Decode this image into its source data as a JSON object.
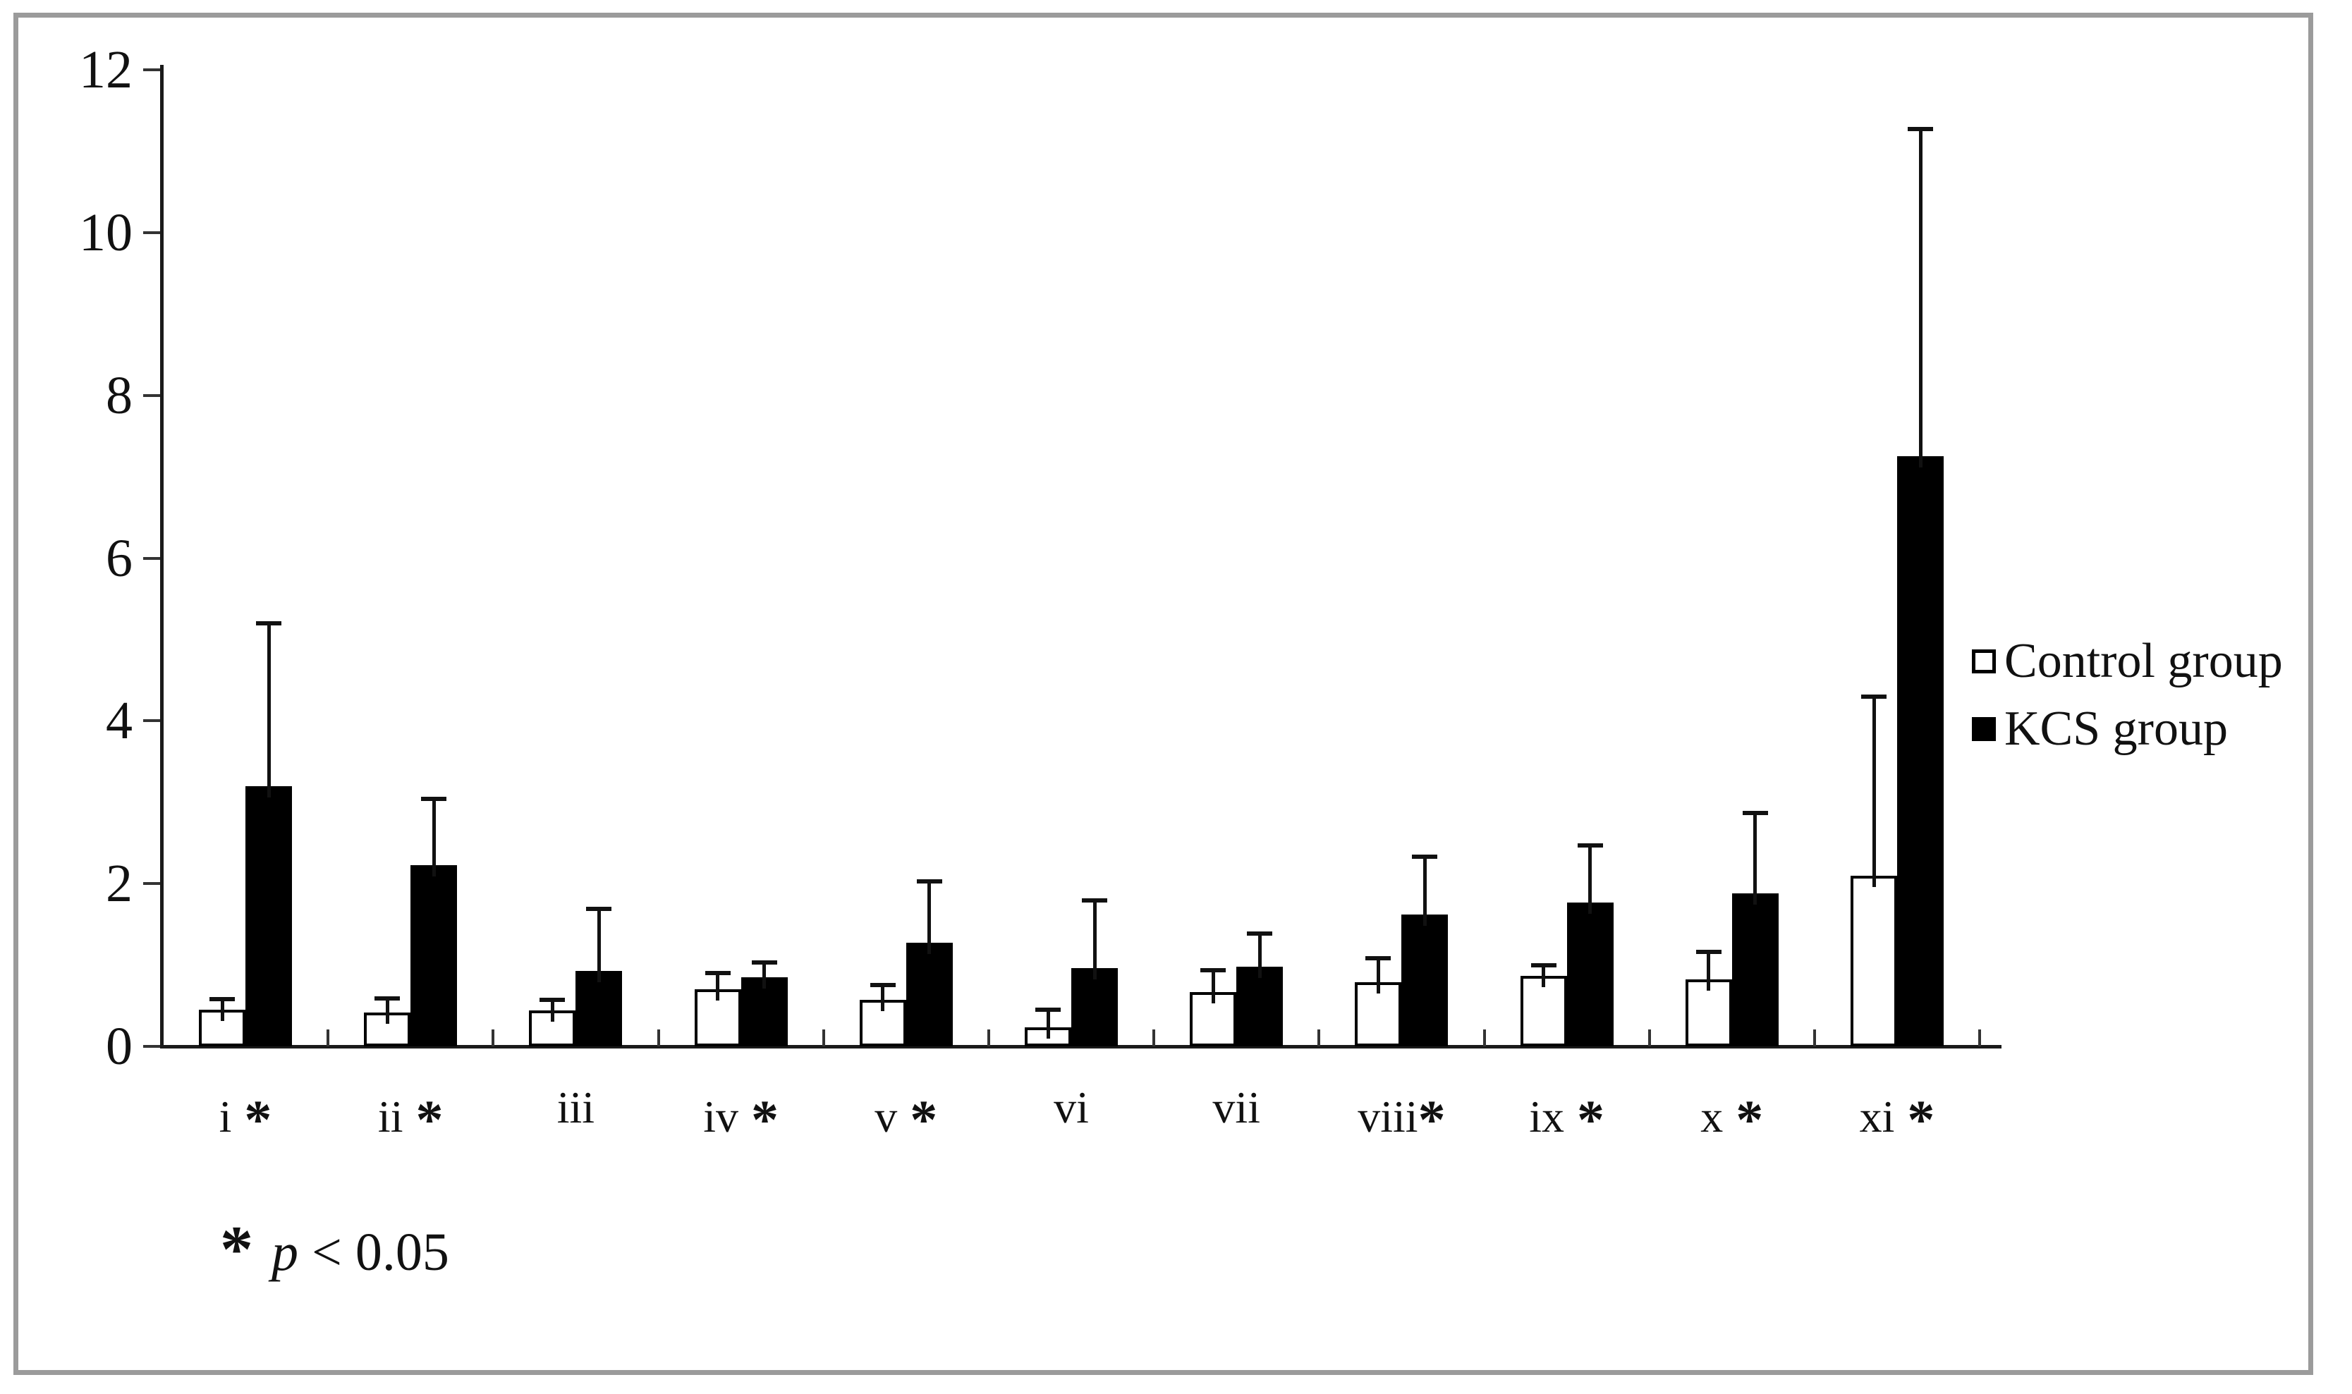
{
  "figure": {
    "background": "#ffffff",
    "border_color": "#9b9b9b"
  },
  "chart_data": {
    "type": "bar",
    "title": "",
    "xlabel": "",
    "ylabel": "",
    "ylim": [
      0,
      12
    ],
    "yticks": [
      0,
      2,
      4,
      6,
      8,
      10,
      12
    ],
    "grid": false,
    "legend_position": "right",
    "categories": [
      {
        "label": "i",
        "significant": true,
        "star_gap": true
      },
      {
        "label": "ii",
        "significant": true,
        "star_gap": true
      },
      {
        "label": "iii",
        "significant": false,
        "star_gap": true
      },
      {
        "label": "iv",
        "significant": true,
        "star_gap": true
      },
      {
        "label": "v",
        "significant": true,
        "star_gap": true
      },
      {
        "label": "vi",
        "significant": false,
        "star_gap": true
      },
      {
        "label": "vii",
        "significant": false,
        "star_gap": true
      },
      {
        "label": "viii",
        "significant": true,
        "star_gap": false
      },
      {
        "label": "ix",
        "significant": true,
        "star_gap": true
      },
      {
        "label": "x",
        "significant": true,
        "star_gap": true
      },
      {
        "label": "xi",
        "significant": true,
        "star_gap": true
      }
    ],
    "series": [
      {
        "name": "Control group",
        "swatch": "open",
        "fill": "#ffffff",
        "values": [
          0.45,
          0.42,
          0.44,
          0.7,
          0.57,
          0.23,
          0.67,
          0.79,
          0.87,
          0.82,
          2.1
        ],
        "error_up": [
          0.13,
          0.17,
          0.13,
          0.2,
          0.18,
          0.22,
          0.27,
          0.29,
          0.13,
          0.34,
          2.2
        ]
      },
      {
        "name": "KCS group",
        "swatch": "filled",
        "fill": "#000000",
        "values": [
          3.2,
          2.23,
          0.93,
          0.85,
          1.27,
          0.96,
          0.98,
          1.62,
          1.77,
          1.88,
          7.25
        ],
        "error_up": [
          2.0,
          0.81,
          0.76,
          0.18,
          0.76,
          0.83,
          0.41,
          0.71,
          0.7,
          0.99,
          4.02
        ]
      }
    ],
    "footnote": {
      "symbol": "*",
      "variable": "p",
      "comparison": "< 0.05"
    },
    "colors": {
      "bar_outline": "#000000",
      "control_fill": "#ffffff",
      "kcs_fill": "#000000",
      "axis": "#1a1a1a"
    }
  }
}
